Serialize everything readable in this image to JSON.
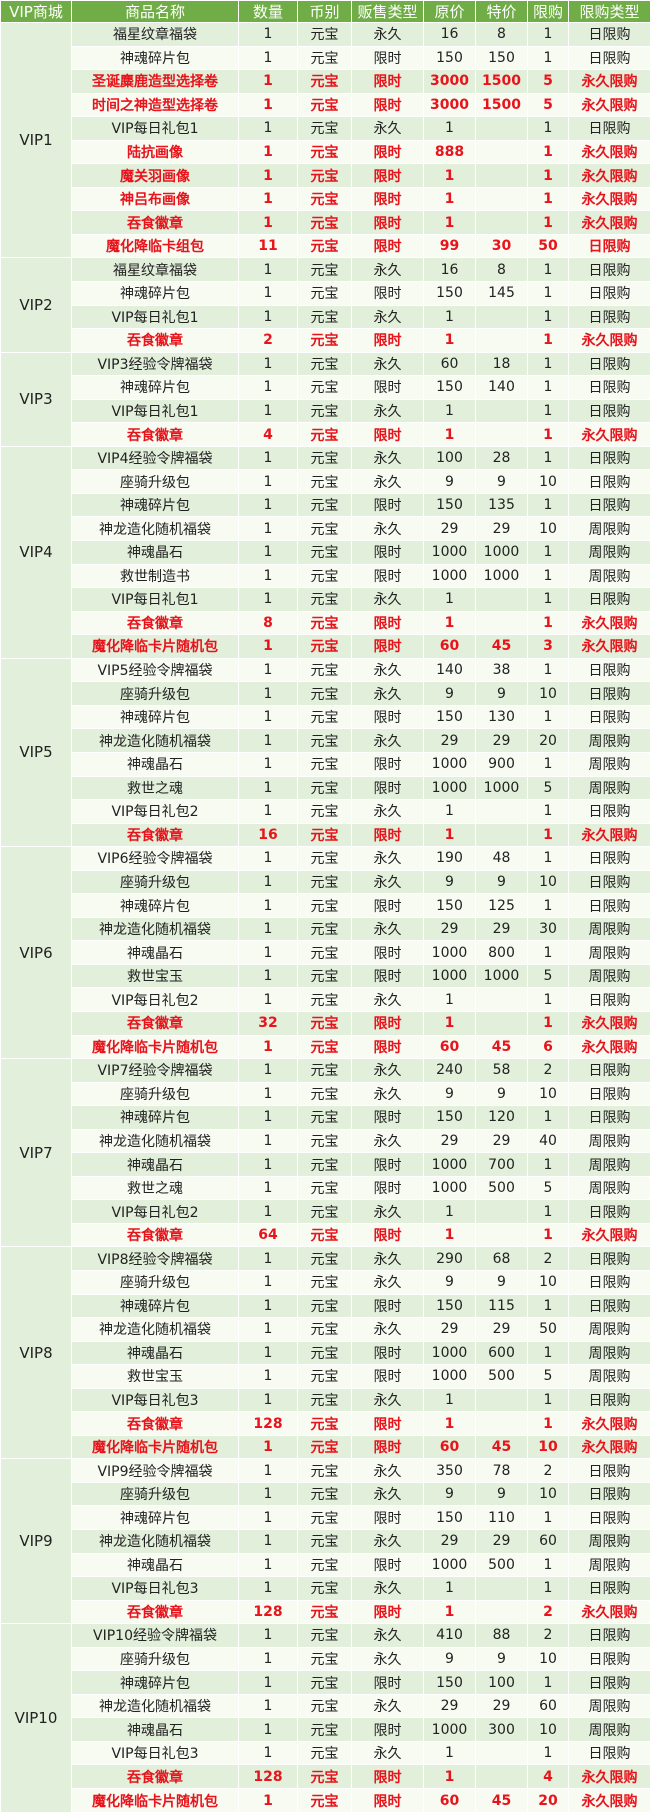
{
  "table": {
    "header": [
      "VIP商城",
      "商品名称",
      "数量",
      "币别",
      "贩售类型",
      "原价",
      "特价",
      "限购",
      "限购类型"
    ],
    "groups": [
      {
        "vip": "VIP1",
        "highlighted_rows": [
          2,
          3,
          5,
          6,
          7,
          8,
          9
        ],
        "rows": [
          [
            "福星纹章福袋",
            1,
            "元宝",
            "永久",
            16,
            8,
            1,
            "日限购"
          ],
          [
            "神魂碎片包",
            1,
            "元宝",
            "限时",
            150,
            150,
            1,
            "日限购"
          ],
          [
            "圣诞麋鹿造型选择卷",
            1,
            "元宝",
            "限时",
            3000,
            1500,
            5,
            "永久限购"
          ],
          [
            "时间之神造型选择卷",
            1,
            "元宝",
            "限时",
            3000,
            1500,
            5,
            "永久限购"
          ],
          [
            "VIP每日礼包1",
            1,
            "元宝",
            "永久",
            1,
            null,
            1,
            "日限购"
          ],
          [
            "陆抗画像",
            1,
            "元宝",
            "限时",
            888,
            null,
            1,
            "永久限购"
          ],
          [
            "魔关羽画像",
            1,
            "元宝",
            "限时",
            1,
            null,
            1,
            "永久限购"
          ],
          [
            "神吕布画像",
            1,
            "元宝",
            "限时",
            1,
            null,
            1,
            "永久限购"
          ],
          [
            "吞食徽章",
            1,
            "元宝",
            "限时",
            1,
            null,
            1,
            "永久限购"
          ],
          [
            "魔化降临卡组包",
            11,
            "元宝",
            "限时",
            99,
            30,
            50,
            "日限购"
          ]
        ]
      },
      {
        "vip": "VIP2",
        "highlighted_rows": [
          3
        ],
        "rows": [
          [
            "福星纹章福袋",
            1,
            "元宝",
            "永久",
            16,
            8,
            1,
            "日限购"
          ],
          [
            "神魂碎片包",
            1,
            "元宝",
            "限时",
            150,
            145,
            1,
            "日限购"
          ],
          [
            "VIP每日礼包1",
            1,
            "元宝",
            "永久",
            1,
            null,
            1,
            "日限购"
          ],
          [
            "吞食徽章",
            2,
            "元宝",
            "限时",
            1,
            null,
            1,
            "永久限购"
          ]
        ]
      },
      {
        "vip": "VIP3",
        "highlighted_rows": [
          3
        ],
        "rows": [
          [
            "VIP3经验令牌福袋",
            1,
            "元宝",
            "永久",
            60,
            18,
            1,
            "日限购"
          ],
          [
            "神魂碎片包",
            1,
            "元宝",
            "限时",
            150,
            140,
            1,
            "日限购"
          ],
          [
            "VIP每日礼包1",
            1,
            "元宝",
            "永久",
            1,
            null,
            1,
            "日限购"
          ],
          [
            "吞食徽章",
            4,
            "元宝",
            "限时",
            1,
            null,
            1,
            "永久限购"
          ]
        ]
      },
      {
        "vip": "VIP4",
        "highlighted_rows": [
          7,
          8
        ],
        "rows": [
          [
            "VIP4经验令牌福袋",
            1,
            "元宝",
            "永久",
            100,
            28,
            1,
            "日限购"
          ],
          [
            "座骑升级包",
            1,
            "元宝",
            "永久",
            9,
            9,
            10,
            "日限购"
          ],
          [
            "神魂碎片包",
            1,
            "元宝",
            "限时",
            150,
            135,
            1,
            "日限购"
          ],
          [
            "神龙造化随机福袋",
            1,
            "元宝",
            "永久",
            29,
            29,
            10,
            "周限购"
          ],
          [
            "神魂晶石",
            1,
            "元宝",
            "限时",
            1000,
            1000,
            1,
            "周限购"
          ],
          [
            "救世制造书",
            1,
            "元宝",
            "限时",
            1000,
            1000,
            1,
            "周限购"
          ],
          [
            "VIP每日礼包1",
            1,
            "元宝",
            "永久",
            1,
            null,
            1,
            "日限购"
          ],
          [
            "吞食徽章",
            8,
            "元宝",
            "限时",
            1,
            null,
            1,
            "永久限购"
          ],
          [
            "魔化降临卡片随机包",
            1,
            "元宝",
            "限时",
            60,
            45,
            3,
            "永久限购"
          ]
        ]
      },
      {
        "vip": "VIP5",
        "highlighted_rows": [
          7
        ],
        "rows": [
          [
            "VIP5经验令牌福袋",
            1,
            "元宝",
            "永久",
            140,
            38,
            1,
            "日限购"
          ],
          [
            "座骑升级包",
            1,
            "元宝",
            "永久",
            9,
            9,
            10,
            "日限购"
          ],
          [
            "神魂碎片包",
            1,
            "元宝",
            "限时",
            150,
            130,
            1,
            "日限购"
          ],
          [
            "神龙造化随机福袋",
            1,
            "元宝",
            "永久",
            29,
            29,
            20,
            "周限购"
          ],
          [
            "神魂晶石",
            1,
            "元宝",
            "限时",
            1000,
            900,
            1,
            "周限购"
          ],
          [
            "救世之魂",
            1,
            "元宝",
            "限时",
            1000,
            1000,
            5,
            "周限购"
          ],
          [
            "VIP每日礼包2",
            1,
            "元宝",
            "永久",
            1,
            null,
            1,
            "日限购"
          ],
          [
            "吞食徽章",
            16,
            "元宝",
            "限时",
            1,
            null,
            1,
            "永久限购"
          ]
        ]
      },
      {
        "vip": "VIP6",
        "highlighted_rows": [
          7,
          8
        ],
        "rows": [
          [
            "VIP6经验令牌福袋",
            1,
            "元宝",
            "永久",
            190,
            48,
            1,
            "日限购"
          ],
          [
            "座骑升级包",
            1,
            "元宝",
            "永久",
            9,
            9,
            10,
            "日限购"
          ],
          [
            "神魂碎片包",
            1,
            "元宝",
            "限时",
            150,
            125,
            1,
            "日限购"
          ],
          [
            "神龙造化随机福袋",
            1,
            "元宝",
            "永久",
            29,
            29,
            30,
            "周限购"
          ],
          [
            "神魂晶石",
            1,
            "元宝",
            "限时",
            1000,
            800,
            1,
            "周限购"
          ],
          [
            "救世宝玉",
            1,
            "元宝",
            "限时",
            1000,
            1000,
            5,
            "周限购"
          ],
          [
            "VIP每日礼包2",
            1,
            "元宝",
            "永久",
            1,
            null,
            1,
            "日限购"
          ],
          [
            "吞食徽章",
            32,
            "元宝",
            "限时",
            1,
            null,
            1,
            "永久限购"
          ],
          [
            "魔化降临卡片随机包",
            1,
            "元宝",
            "限时",
            60,
            45,
            6,
            "永久限购"
          ]
        ]
      },
      {
        "vip": "VIP7",
        "highlighted_rows": [
          7
        ],
        "rows": [
          [
            "VIP7经验令牌福袋",
            1,
            "元宝",
            "永久",
            240,
            58,
            2,
            "日限购"
          ],
          [
            "座骑升级包",
            1,
            "元宝",
            "永久",
            9,
            9,
            10,
            "日限购"
          ],
          [
            "神魂碎片包",
            1,
            "元宝",
            "限时",
            150,
            120,
            1,
            "日限购"
          ],
          [
            "神龙造化随机福袋",
            1,
            "元宝",
            "永久",
            29,
            29,
            40,
            "周限购"
          ],
          [
            "神魂晶石",
            1,
            "元宝",
            "限时",
            1000,
            700,
            1,
            "周限购"
          ],
          [
            "救世之魂",
            1,
            "元宝",
            "限时",
            1000,
            500,
            5,
            "周限购"
          ],
          [
            "VIP每日礼包2",
            1,
            "元宝",
            "永久",
            1,
            null,
            1,
            "日限购"
          ],
          [
            "吞食徽章",
            64,
            "元宝",
            "限时",
            1,
            null,
            1,
            "永久限购"
          ]
        ]
      },
      {
        "vip": "VIP8",
        "highlighted_rows": [
          7,
          8
        ],
        "rows": [
          [
            "VIP8经验令牌福袋",
            1,
            "元宝",
            "永久",
            290,
            68,
            2,
            "日限购"
          ],
          [
            "座骑升级包",
            1,
            "元宝",
            "永久",
            9,
            9,
            10,
            "日限购"
          ],
          [
            "神魂碎片包",
            1,
            "元宝",
            "限时",
            150,
            115,
            1,
            "日限购"
          ],
          [
            "神龙造化随机福袋",
            1,
            "元宝",
            "永久",
            29,
            29,
            50,
            "周限购"
          ],
          [
            "神魂晶石",
            1,
            "元宝",
            "限时",
            1000,
            600,
            1,
            "周限购"
          ],
          [
            "救世宝玉",
            1,
            "元宝",
            "限时",
            1000,
            500,
            5,
            "周限购"
          ],
          [
            "VIP每日礼包3",
            1,
            "元宝",
            "永久",
            1,
            null,
            1,
            "日限购"
          ],
          [
            "吞食徽章",
            128,
            "元宝",
            "限时",
            1,
            null,
            1,
            "永久限购"
          ],
          [
            "魔化降临卡片随机包",
            1,
            "元宝",
            "限时",
            60,
            45,
            10,
            "永久限购"
          ]
        ]
      },
      {
        "vip": "VIP9",
        "highlighted_rows": [
          6
        ],
        "rows": [
          [
            "VIP9经验令牌福袋",
            1,
            "元宝",
            "永久",
            350,
            78,
            2,
            "日限购"
          ],
          [
            "座骑升级包",
            1,
            "元宝",
            "永久",
            9,
            9,
            10,
            "日限购"
          ],
          [
            "神魂碎片包",
            1,
            "元宝",
            "限时",
            150,
            110,
            1,
            "日限购"
          ],
          [
            "神龙造化随机福袋",
            1,
            "元宝",
            "永久",
            29,
            29,
            60,
            "周限购"
          ],
          [
            "神魂晶石",
            1,
            "元宝",
            "限时",
            1000,
            500,
            1,
            "周限购"
          ],
          [
            "VIP每日礼包3",
            1,
            "元宝",
            "永久",
            1,
            null,
            1,
            "日限购"
          ],
          [
            "吞食徽章",
            128,
            "元宝",
            "限时",
            1,
            null,
            2,
            "永久限购"
          ]
        ]
      },
      {
        "vip": "VIP10",
        "highlighted_rows": [
          6,
          7
        ],
        "rows": [
          [
            "VIP10经验令牌福袋",
            1,
            "元宝",
            "永久",
            410,
            88,
            2,
            "日限购"
          ],
          [
            "座骑升级包",
            1,
            "元宝",
            "永久",
            9,
            9,
            10,
            "日限购"
          ],
          [
            "神魂碎片包",
            1,
            "元宝",
            "限时",
            150,
            100,
            1,
            "日限购"
          ],
          [
            "神龙造化随机福袋",
            1,
            "元宝",
            "永久",
            29,
            29,
            60,
            "周限购"
          ],
          [
            "神魂晶石",
            1,
            "元宝",
            "限时",
            1000,
            300,
            10,
            "周限购"
          ],
          [
            "VIP每日礼包3",
            1,
            "元宝",
            "永久",
            1,
            null,
            1,
            "日限购"
          ],
          [
            "吞食徽章",
            128,
            "元宝",
            "限时",
            1,
            null,
            4,
            "永久限购"
          ],
          [
            "魔化降临卡片随机包",
            1,
            "元宝",
            "限时",
            60,
            45,
            20,
            "永久限购"
          ]
        ]
      }
    ]
  }
}
